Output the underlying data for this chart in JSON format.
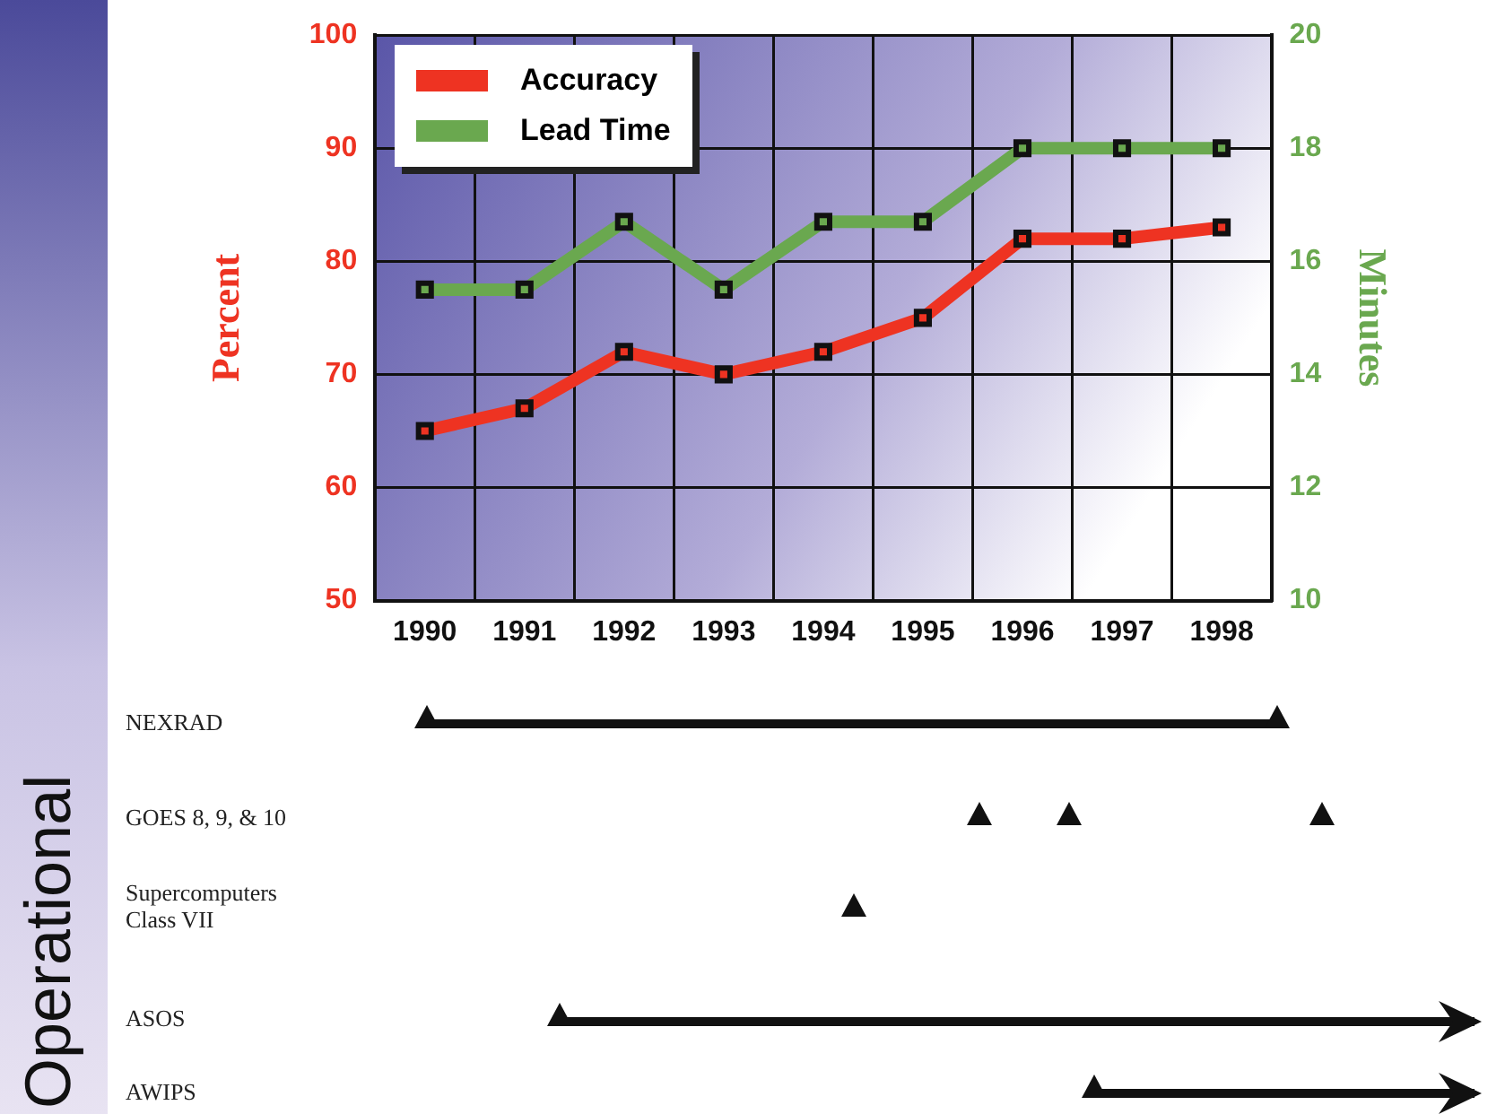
{
  "chart_data": {
    "type": "line",
    "categories": [
      "1990",
      "1991",
      "1992",
      "1993",
      "1994",
      "1995",
      "1996",
      "1997",
      "1998"
    ],
    "series": [
      {
        "name": "Accuracy",
        "color": "#ee3322",
        "values": [
          65,
          67,
          72,
          70,
          72,
          75,
          82,
          82,
          83
        ]
      },
      {
        "name": "Lead Time",
        "color": "#6aa84f",
        "axis": "y2",
        "values": [
          15.5,
          15.5,
          16.7,
          15.5,
          16.7,
          16.7,
          18,
          18,
          18
        ]
      }
    ],
    "ylabel": "Percent",
    "y2label": "Minutes",
    "ylim": [
      50,
      100
    ],
    "yticks": [
      50,
      60,
      70,
      80,
      90,
      100
    ],
    "y2lim": [
      10,
      20
    ],
    "y2ticks": [
      10,
      12,
      14,
      16,
      18,
      20
    ],
    "grid": true,
    "legend": "top left",
    "marker": "square",
    "line_style": "solid",
    "annotations": [
      "Operational",
      "NEXRAD",
      "GOES 8, 9, & 10",
      "Supercomputers Class VII",
      "ASOS",
      "AWIPS"
    ]
  }
}
